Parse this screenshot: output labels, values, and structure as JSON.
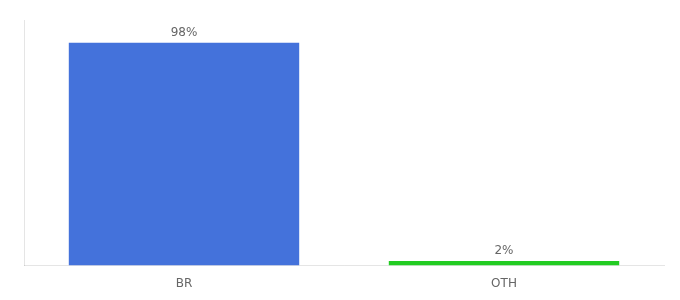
{
  "chart_data": {
    "type": "bar",
    "categories": [
      "BR",
      "OTH"
    ],
    "values": [
      98,
      2
    ],
    "value_labels": [
      "98%",
      "2%"
    ],
    "colors": [
      "#4472db",
      "#22cc22"
    ],
    "ylim": [
      0,
      108
    ],
    "grid": false,
    "data_labels": true,
    "tick_labels": "x"
  }
}
